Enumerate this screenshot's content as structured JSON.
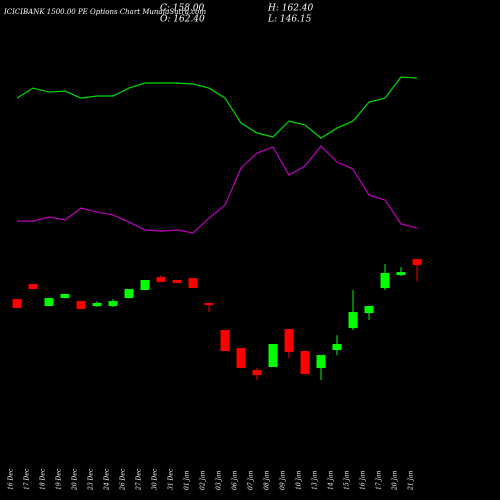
{
  "chart_data": {
    "type": "candlestick",
    "title": "ICICIBANK 1500.00 PE Options Chart MunafaSutra.com",
    "summary": [
      "C: 158.00",
      "H: 162.40",
      "O: 162.40",
      "L: 146.15"
    ],
    "categories": [
      "16 Dec",
      "17 Dec",
      "18 Dec",
      "19 Dec",
      "20 Dec",
      "23 Dec",
      "24 Dec",
      "26 Dec",
      "27 Dec",
      "30 Dec",
      "31 Dec",
      "01 Jan",
      "02 Jan",
      "03 Jan",
      "06 Jan",
      "07 Jan",
      "08 Jan",
      "09 Jan",
      "10 Jan",
      "13 Jan",
      "14 Jan",
      "15 Jan",
      "16 Jan",
      "17 Jan",
      "20 Jan",
      "21 Jan"
    ],
    "open": [
      133.2,
      144.2,
      128.1,
      133.9,
      131.7,
      128.1,
      128.1,
      133.9,
      139.8,
      149.3,
      147.1,
      148.5,
      130.3,
      110.6,
      97.4,
      81.4,
      83.6,
      111.3,
      95.2,
      82.8,
      96.0,
      112.0,
      123.0,
      141.2,
      150.7,
      162.4
    ],
    "high": [
      133.2,
      144.2,
      133.9,
      136.9,
      131.7,
      131.7,
      133.2,
      140.5,
      147.1,
      150.7,
      147.1,
      148.5,
      130.3,
      110.6,
      97.4,
      82.8,
      100.4,
      111.3,
      95.2,
      92.3,
      106.9,
      139.8,
      128.1,
      158.7,
      156.6,
      162.4
    ],
    "low": [
      126.6,
      140.5,
      128.1,
      133.9,
      125.9,
      127.3,
      127.3,
      133.9,
      139.8,
      145.6,
      144.9,
      141.2,
      123.7,
      95.2,
      82.8,
      74.1,
      83.6,
      90.1,
      78.4,
      74.1,
      92.3,
      110.6,
      117.9,
      139.8,
      150.0,
      146.15
    ],
    "close": [
      126.6,
      140.5,
      133.9,
      136.9,
      125.9,
      130.3,
      131.7,
      140.5,
      147.1,
      145.6,
      144.9,
      141.2,
      128.8,
      95.2,
      82.8,
      77.7,
      100.4,
      94.5,
      78.4,
      92.3,
      100.4,
      123.7,
      128.1,
      152.2,
      152.9,
      158.0
    ],
    "up_color": "#00ff00",
    "down_color": "#ff0000",
    "series": [
      {
        "color": "#00dd00",
        "values": [
          279.9,
          287.2,
          284.3,
          285.0,
          279.9,
          281.4,
          281.4,
          287.2,
          290.9,
          290.9,
          290.9,
          290.2,
          287.2,
          279.9,
          261.7,
          254.4,
          251.5,
          263.1,
          260.2,
          250.7,
          258.0,
          263.1,
          277.0,
          279.9,
          295.3,
          294.5
        ]
      },
      {
        "color": "#c000c0",
        "values": [
          190.1,
          190.1,
          193.1,
          190.9,
          199.6,
          196.7,
          194.5,
          189.4,
          183.6,
          182.8,
          183.6,
          181.4,
          192.3,
          201.8,
          228.8,
          239.8,
          244.2,
          223.7,
          230.3,
          244.9,
          233.2,
          228.1,
          209.1,
          205.5,
          188.0,
          185.0
        ]
      }
    ],
    "ylim": [
      -13.5,
      351.5
    ]
  }
}
